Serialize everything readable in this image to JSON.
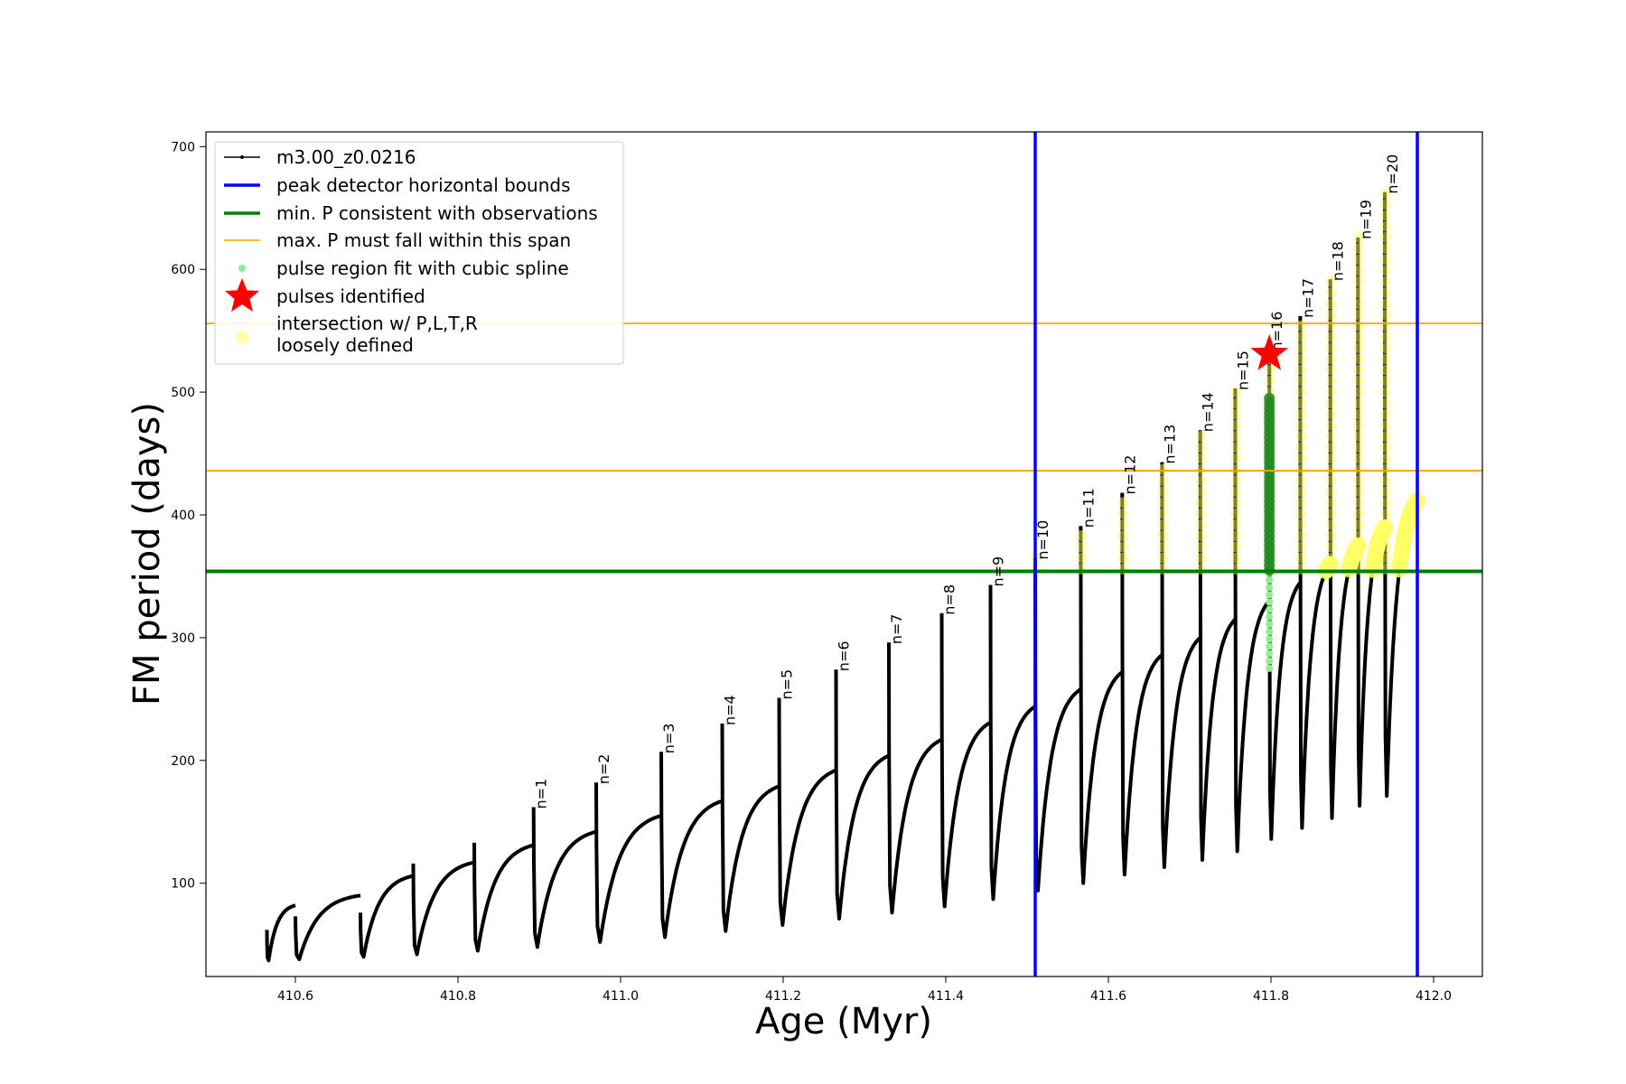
{
  "chart_data": {
    "type": "line",
    "title": "",
    "xlabel": "Age (Myr)",
    "ylabel": "FM period (days)",
    "xlim": [
      410.49,
      412.06
    ],
    "ylim": [
      24,
      712
    ],
    "xticks": [
      410.6,
      410.8,
      411.0,
      411.2,
      411.4,
      411.6,
      411.8,
      412.0
    ],
    "xtick_labels": [
      "410.6",
      "410.8",
      "411.0",
      "411.2",
      "411.4",
      "411.6",
      "411.8",
      "412.0"
    ],
    "yticks": [
      100,
      200,
      300,
      400,
      500,
      600,
      700
    ],
    "ytick_labels": [
      "100",
      "200",
      "300",
      "400",
      "500",
      "600",
      "700"
    ],
    "grid": false,
    "legend_position": "upper-left",
    "legend": [
      {
        "label": "m3.00_z0.0216",
        "kind": "line-marker",
        "color": "#000000"
      },
      {
        "label": "peak detector horizontal bounds",
        "kind": "line",
        "color": "#0000ff"
      },
      {
        "label": "min. P consistent with observations",
        "kind": "line",
        "color": "#008000"
      },
      {
        "label": "max. P must fall within this span",
        "kind": "thin-line",
        "color": "#ffa500"
      },
      {
        "label": "pulse region fit with cubic spline",
        "kind": "dot",
        "color": "#90ee90"
      },
      {
        "label": "pulses identified",
        "kind": "star",
        "color": "#ff0000"
      },
      {
        "label": "intersection w/ P,L,T,R",
        "label2": "loosely defined",
        "kind": "big-dot",
        "color": "#ffff66"
      }
    ],
    "vertical_lines": {
      "color": "#0000ff",
      "x": [
        411.51,
        411.98
      ]
    },
    "min_period_line": {
      "color": "#008000",
      "y": 354
    },
    "max_period_lines": {
      "color": "#ffa500",
      "y": [
        436,
        556
      ]
    },
    "series_color": "#000000",
    "pulses": [
      {
        "label": "",
        "t0": 410.565,
        "t1": 410.6,
        "min": 37,
        "start": 62,
        "end": 82
      },
      {
        "label": "",
        "t0": 410.6,
        "t1": 410.68,
        "min": 38,
        "start": 73,
        "end": 90
      },
      {
        "label": "",
        "t0": 410.68,
        "t1": 410.745,
        "min": 40,
        "start": 76,
        "end": 106
      },
      {
        "label": "",
        "t0": 410.745,
        "t1": 410.82,
        "min": 42,
        "start": 116,
        "end": 117
      },
      {
        "label": "",
        "t0": 410.82,
        "t1": 410.893,
        "min": 45,
        "start": 133,
        "end": 131
      },
      {
        "label": "n=1",
        "t0": 410.893,
        "t1": 410.97,
        "min": 48,
        "start": 162,
        "end": 142
      },
      {
        "label": "n=2",
        "t0": 410.97,
        "t1": 411.05,
        "min": 52,
        "start": 182,
        "end": 155
      },
      {
        "label": "n=3",
        "t0": 411.05,
        "t1": 411.125,
        "min": 56,
        "start": 207,
        "end": 167
      },
      {
        "label": "n=4",
        "t0": 411.125,
        "t1": 411.195,
        "min": 61,
        "start": 230,
        "end": 179
      },
      {
        "label": "n=5",
        "t0": 411.195,
        "t1": 411.265,
        "min": 66,
        "start": 251,
        "end": 192
      },
      {
        "label": "n=6",
        "t0": 411.265,
        "t1": 411.33,
        "min": 71,
        "start": 274,
        "end": 204
      },
      {
        "label": "n=7",
        "t0": 411.33,
        "t1": 411.395,
        "min": 76,
        "start": 296,
        "end": 217
      },
      {
        "label": "n=8",
        "t0": 411.395,
        "t1": 411.455,
        "min": 81,
        "start": 320,
        "end": 231
      },
      {
        "label": "n=9",
        "t0": 411.455,
        "t1": 411.51,
        "min": 87,
        "start": 343,
        "end": 244
      },
      {
        "label": "n=10",
        "t0": 411.51,
        "t1": 411.566,
        "min": 94,
        "start": 365,
        "end": 258
      },
      {
        "label": "n=11",
        "t0": 411.566,
        "t1": 411.617,
        "min": 100,
        "start": 391,
        "end": 272
      },
      {
        "label": "n=12",
        "t0": 411.617,
        "t1": 411.666,
        "min": 107,
        "start": 418,
        "end": 286
      },
      {
        "label": "n=13",
        "t0": 411.666,
        "t1": 411.713,
        "min": 113,
        "start": 443,
        "end": 300
      },
      {
        "label": "n=14",
        "t0": 411.713,
        "t1": 411.756,
        "min": 119,
        "start": 469,
        "end": 315
      },
      {
        "label": "n=15",
        "t0": 411.756,
        "t1": 411.798,
        "min": 126,
        "start": 503,
        "end": 330
      },
      {
        "label": "n=16",
        "t0": 411.798,
        "t1": 411.836,
        "min": 136,
        "start": 535,
        "end": 345
      },
      {
        "label": "n=17",
        "t0": 411.836,
        "t1": 411.873,
        "min": 145,
        "start": 562,
        "end": 360
      },
      {
        "label": "n=18",
        "t0": 411.873,
        "t1": 411.907,
        "min": 153,
        "start": 592,
        "end": 375
      },
      {
        "label": "n=19",
        "t0": 411.907,
        "t1": 411.94,
        "min": 163,
        "start": 626,
        "end": 390
      },
      {
        "label": "n=20",
        "t0": 411.94,
        "t1": 411.98,
        "min": 171,
        "start": 663,
        "end": 412
      }
    ],
    "pulse_identified": {
      "x": 411.798,
      "y": 531,
      "color": "#ff0000"
    },
    "spline_region": {
      "x": 411.798,
      "y_range": [
        275,
        355
      ],
      "color": "#90ee90"
    },
    "green_peak_region": {
      "x": 411.798,
      "y_range": [
        355,
        498
      ],
      "color": "#228b22"
    },
    "yellow_color": "#ffff66"
  }
}
